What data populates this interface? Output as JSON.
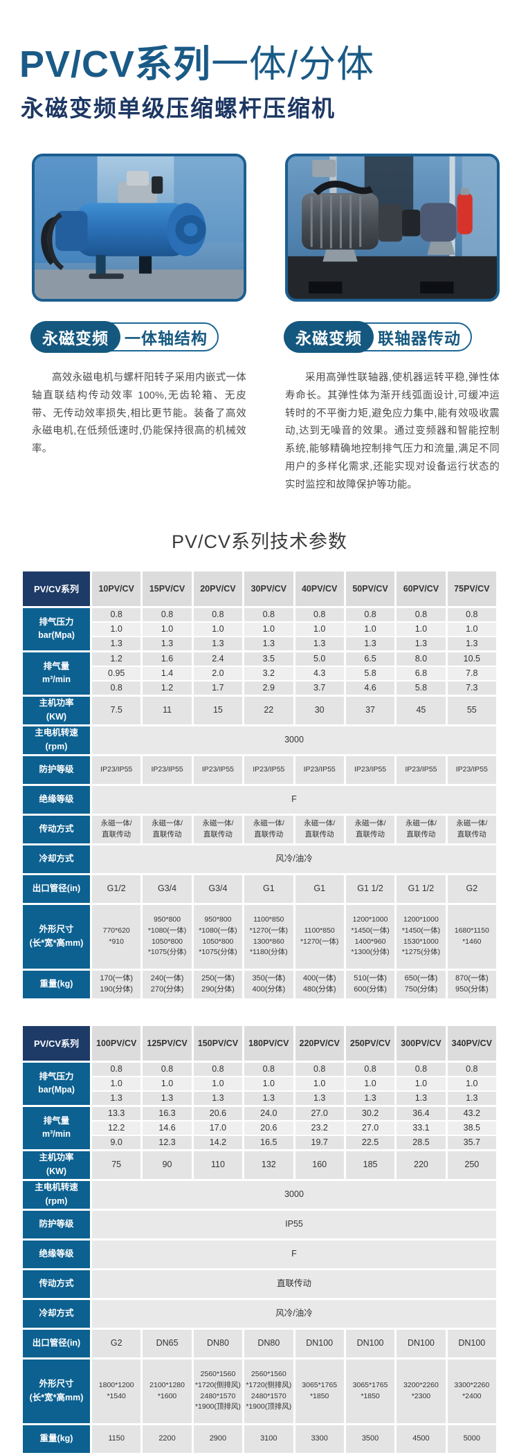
{
  "header": {
    "title_bold": "PV/CV系列",
    "title_light": "一体/分体",
    "subtitle": "永磁变频单级压缩螺杆压缩机",
    "section_title": "PV/CV系列技术参数"
  },
  "features": [
    {
      "photo": "integrated-shaft-compressor-photo",
      "badge_fill": "永磁变频",
      "badge_outline": "一体轴结构",
      "description": "高效永磁电机与螺杆阳转子采用内嵌式一体轴直联结构传动效率 100%,无齿轮箱、无皮带、无传动效率损失,相比更节能。装备了高效永磁电机,在低频低速时,仍能保持很高的机械效率。"
    },
    {
      "photo": "coupling-drive-compressor-photo",
      "badge_fill": "永磁变频",
      "badge_outline": "联轴器传动",
      "description": "采用高弹性联轴器,使机器运转平稳,弹性体寿命长。其弹性体为渐开线弧面设计,可缓冲运转时的不平衡力矩,避免应力集中,能有效吸收震动,达到无噪音的效果。通过变频器和智能控制系统,能够精确地控制排气压力和流量,满足不同用户的多样化需求,还能实现对设备运行状态的实时监控和故障保护等功能。"
    }
  ],
  "tables": [
    {
      "corner": "PV/CV系列",
      "models": [
        "10PV/CV",
        "15PV/CV",
        "20PV/CV",
        "30PV/CV",
        "40PV/CV",
        "50PV/CV",
        "60PV/CV",
        "75PV/CV"
      ],
      "rows": [
        {
          "label": "排气压力\nbar(Mpa)",
          "type": "multi",
          "values": [
            [
              "0.8",
              "0.8",
              "0.8",
              "0.8",
              "0.8",
              "0.8",
              "0.8",
              "0.8"
            ],
            [
              "1.0",
              "1.0",
              "1.0",
              "1.0",
              "1.0",
              "1.0",
              "1.0",
              "1.0"
            ],
            [
              "1.3",
              "1.3",
              "1.3",
              "1.3",
              "1.3",
              "1.3",
              "1.3",
              "1.3"
            ]
          ]
        },
        {
          "label": "排气量\nm³/min",
          "type": "multi",
          "values": [
            [
              "1.2",
              "1.6",
              "2.4",
              "3.5",
              "5.0",
              "6.5",
              "8.0",
              "10.5"
            ],
            [
              "0.95",
              "1.4",
              "2.0",
              "3.2",
              "4.3",
              "5.8",
              "6.8",
              "7.8"
            ],
            [
              "0.8",
              "1.2",
              "1.7",
              "2.9",
              "3.7",
              "4.6",
              "5.8",
              "7.3"
            ]
          ]
        },
        {
          "label": "主机功率\n(KW)",
          "type": "cells",
          "values": [
            "7.5",
            "11",
            "15",
            "22",
            "30",
            "37",
            "45",
            "55"
          ]
        },
        {
          "label": "主电机转速\n(rpm)",
          "type": "merged",
          "value": "3000"
        },
        {
          "label": "防护等级",
          "type": "cells",
          "values": [
            "IP23/IP55",
            "IP23/IP55",
            "IP23/IP55",
            "IP23/IP55",
            "IP23/IP55",
            "IP23/IP55",
            "IP23/IP55",
            "IP23/IP55"
          ],
          "small": true
        },
        {
          "label": "绝缘等级",
          "type": "merged",
          "value": "F"
        },
        {
          "label": "传动方式",
          "type": "cells",
          "small": true,
          "values": [
            "永磁一体/\n直联传动",
            "永磁一体/\n直联传动",
            "永磁一体/\n直联传动",
            "永磁一体/\n直联传动",
            "永磁一体/\n直联传动",
            "永磁一体/\n直联传动",
            "永磁一体/\n直联传动",
            "永磁一体/\n直联传动"
          ]
        },
        {
          "label": "冷却方式",
          "type": "merged",
          "value": "风冷/油冷"
        },
        {
          "label": "出口管径(in)",
          "type": "cells",
          "values": [
            "G1/2",
            "G3/4",
            "G3/4",
            "G1",
            "G1",
            "G1 1/2",
            "G1 1/2",
            "G2"
          ]
        },
        {
          "label": "外形尺寸\n(长*宽*高mm)",
          "type": "cells",
          "tall": true,
          "values": [
            "770*620\n*910",
            "950*800\n*1080(一体)\n1050*800\n*1075(分体)",
            "950*800\n*1080(一体)\n1050*800\n*1075(分体)",
            "1100*850\n*1270(一体)\n1300*860\n*1180(分体)",
            "1100*850\n*1270(一体)",
            "1200*1000\n*1450(一体)\n1400*960\n*1300(分体)",
            "1200*1000\n*1450(一体)\n1530*1000\n*1275(分体)",
            "1680*1150\n*1460"
          ]
        },
        {
          "label": "重量(kg)",
          "type": "cells",
          "slim": true,
          "values": [
            "170(一体)\n190(分体)",
            "240(一体)\n270(分体)",
            "250(一体)\n290(分体)",
            "350(一体)\n400(分体)",
            "400(一体)\n480(分体)",
            "510(一体)\n600(分体)",
            "650(一体)\n750(分体)",
            "870(一体)\n950(分体)"
          ]
        }
      ]
    },
    {
      "corner": "PV/CV系列",
      "models": [
        "100PV/CV",
        "125PV/CV",
        "150PV/CV",
        "180PV/CV",
        "220PV/CV",
        "250PV/CV",
        "300PV/CV",
        "340PV/CV"
      ],
      "rows": [
        {
          "label": "排气压力\nbar(Mpa)",
          "type": "multi",
          "values": [
            [
              "0.8",
              "0.8",
              "0.8",
              "0.8",
              "0.8",
              "0.8",
              "0.8",
              "0.8"
            ],
            [
              "1.0",
              "1.0",
              "1.0",
              "1.0",
              "1.0",
              "1.0",
              "1.0",
              "1.0"
            ],
            [
              "1.3",
              "1.3",
              "1.3",
              "1.3",
              "1.3",
              "1.3",
              "1.3",
              "1.3"
            ]
          ]
        },
        {
          "label": "排气量\nm³/min",
          "type": "multi",
          "values": [
            [
              "13.3",
              "16.3",
              "20.6",
              "24.0",
              "27.0",
              "30.2",
              "36.4",
              "43.2"
            ],
            [
              "12.2",
              "14.6",
              "17.0",
              "20.6",
              "23.2",
              "27.0",
              "33.1",
              "38.5"
            ],
            [
              "9.0",
              "12.3",
              "14.2",
              "16.5",
              "19.7",
              "22.5",
              "28.5",
              "35.7"
            ]
          ]
        },
        {
          "label": "主机功率\n(KW)",
          "type": "cells",
          "values": [
            "75",
            "90",
            "110",
            "132",
            "160",
            "185",
            "220",
            "250"
          ]
        },
        {
          "label": "主电机转速\n(rpm)",
          "type": "merged",
          "value": "3000"
        },
        {
          "label": "防护等级",
          "type": "merged",
          "value": "IP55"
        },
        {
          "label": "绝缘等级",
          "type": "merged",
          "value": "F"
        },
        {
          "label": "传动方式",
          "type": "merged",
          "value": "直联传动"
        },
        {
          "label": "冷却方式",
          "type": "merged",
          "value": "风冷/油冷"
        },
        {
          "label": "出口管径(in)",
          "type": "cells",
          "values": [
            "G2",
            "DN65",
            "DN80",
            "DN80",
            "DN100",
            "DN100",
            "DN100",
            "DN100"
          ]
        },
        {
          "label": "外形尺寸\n(长*宽*高mm)",
          "type": "cells",
          "tall": true,
          "values": [
            "1800*1200\n*1540",
            "2100*1280\n*1600",
            "2560*1560\n*1720(侧排风)\n2480*1570\n*1900(顶排风)",
            "2560*1560\n*1720(侧排风)\n2480*1570\n*1900(顶排风)",
            "3065*1765\n*1850",
            "3065*1765\n*1850",
            "3200*2260\n*2300",
            "3300*2260\n*2400"
          ]
        },
        {
          "label": "重量(kg)",
          "type": "cells",
          "slim": true,
          "values": [
            "1150",
            "2200",
            "2900",
            "3100",
            "3300",
            "3500",
            "4500",
            "5000"
          ]
        }
      ]
    }
  ],
  "colors": {
    "title_blue": "#1a5a86",
    "subtitle_navy": "#1d3763",
    "badge_blue": "#15587f",
    "table_corner_navy": "#1e3a66",
    "table_label_blue": "#0c6191",
    "cell_gray": "#e4e4e4"
  }
}
